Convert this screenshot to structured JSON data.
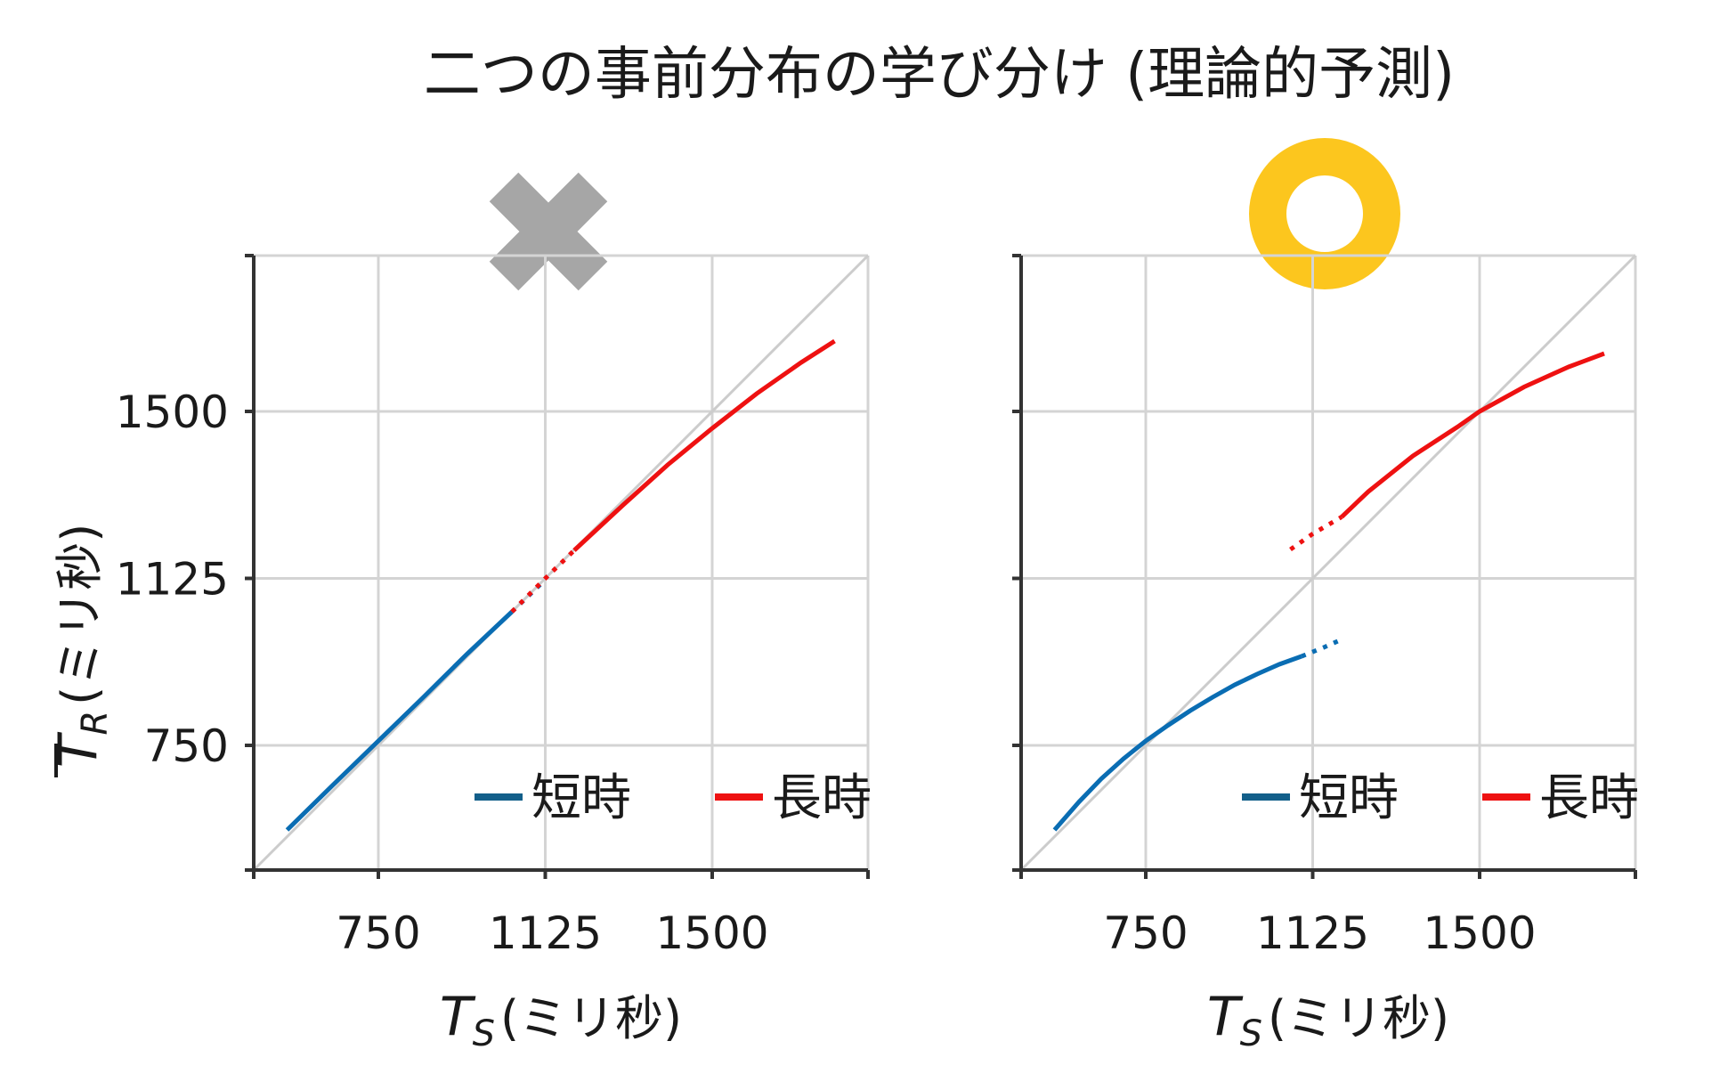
{
  "title": "二つの事前分布の学び分け (理論的予測)",
  "colors": {
    "short": "#0a6db3",
    "long": "#ee1111",
    "legend_short": "#125f8a",
    "grid": "#d4d4d4",
    "identity": "#cccccc",
    "axis": "#333333",
    "cross_mark": "#a6a6a6",
    "circle_mark": "#fcc61e"
  },
  "axis_labels": {
    "x_var": "T",
    "x_sub": "S",
    "x_unit": "(ミリ秒)",
    "y_var": "T",
    "y_sub": "R",
    "y_unit": "(ミリ秒)"
  },
  "legend": {
    "short": "短時",
    "long": "長時"
  },
  "chart_data": [
    {
      "type": "line",
      "verdict_icon": "cross-mark-icon",
      "xlim": [
        470,
        1850
      ],
      "ylim": [
        470,
        1850
      ],
      "xticks": [
        750,
        1125,
        1500
      ],
      "yticks": [
        750,
        1125,
        1500
      ],
      "grid": true,
      "identity_line": true,
      "legend_position": "bottom-right",
      "series": [
        {
          "name": "短時",
          "color_key": "short",
          "solid": [
            [
              545,
              560
            ],
            [
              650,
              663
            ],
            [
              750,
              760
            ],
            [
              850,
              857
            ],
            [
              950,
              956
            ],
            [
              1050,
              1050
            ]
          ],
          "dotted": [
            [
              1050,
              1050
            ],
            [
              1125,
              1122
            ]
          ]
        },
        {
          "name": "長時",
          "color_key": "long",
          "dotted": [
            [
              1050,
              1050
            ],
            [
              1125,
              1125
            ],
            [
              1190,
              1188
            ]
          ],
          "solid": [
            [
              1190,
              1188
            ],
            [
              1300,
              1290
            ],
            [
              1400,
              1380
            ],
            [
              1500,
              1462
            ],
            [
              1600,
              1540
            ],
            [
              1700,
              1610
            ],
            [
              1775,
              1658
            ]
          ]
        }
      ]
    },
    {
      "type": "line",
      "verdict_icon": "circle-mark-icon",
      "xlim": [
        470,
        1850
      ],
      "ylim": [
        470,
        1850
      ],
      "xticks": [
        750,
        1125,
        1500
      ],
      "yticks": [
        750,
        1125,
        1500
      ],
      "grid": true,
      "identity_line": true,
      "legend_position": "bottom-right",
      "series": [
        {
          "name": "短時",
          "color_key": "short",
          "solid": [
            [
              545,
              560
            ],
            [
              600,
              623
            ],
            [
              650,
              675
            ],
            [
              700,
              720
            ],
            [
              750,
              760
            ],
            [
              800,
              795
            ],
            [
              850,
              828
            ],
            [
              900,
              858
            ],
            [
              950,
              886
            ],
            [
              1000,
              910
            ],
            [
              1050,
              932
            ],
            [
              1100,
              950
            ]
          ],
          "dotted": [
            [
              1100,
              950
            ],
            [
              1150,
              970
            ],
            [
              1195,
              990
            ]
          ]
        },
        {
          "name": "長時",
          "color_key": "long",
          "dotted": [
            [
              1075,
              1190
            ],
            [
              1125,
              1225
            ],
            [
              1190,
              1263
            ]
          ],
          "solid": [
            [
              1190,
              1263
            ],
            [
              1250,
              1320
            ],
            [
              1350,
              1400
            ],
            [
              1450,
              1465
            ],
            [
              1500,
              1500
            ],
            [
              1600,
              1555
            ],
            [
              1700,
              1600
            ],
            [
              1780,
              1630
            ]
          ]
        }
      ]
    }
  ]
}
